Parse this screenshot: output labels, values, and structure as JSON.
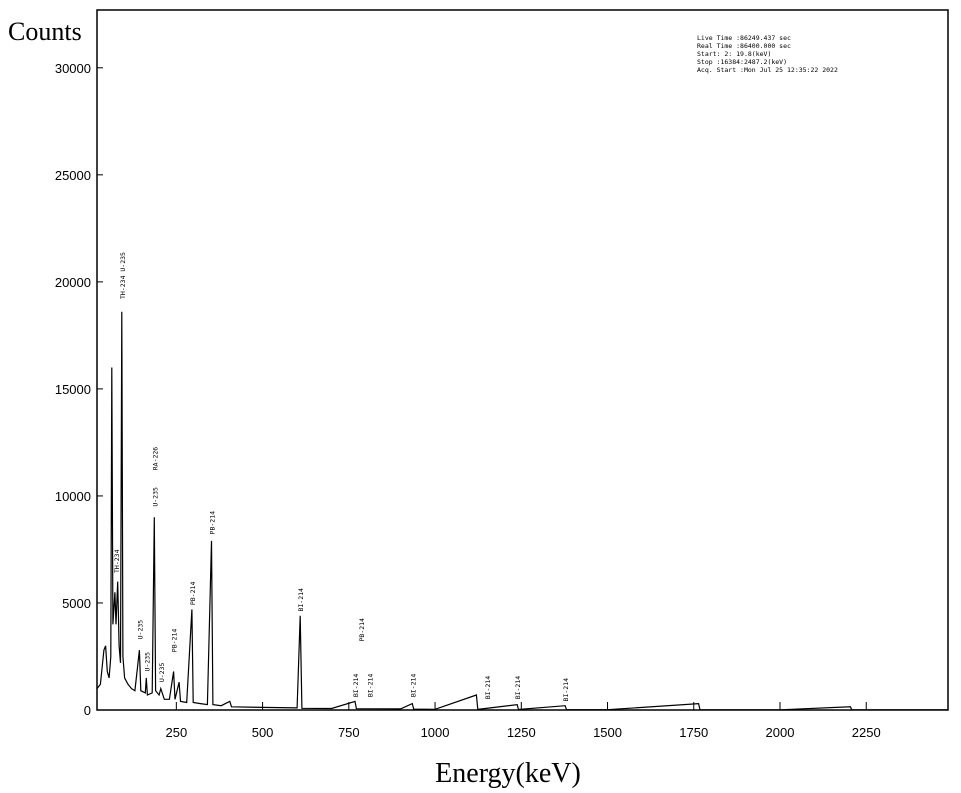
{
  "chart_data": {
    "type": "line",
    "x_label": "Energy(keV)",
    "y_label": "Counts",
    "info_lines": [
      "Live Time :86249.437 sec",
      "Real Time :86400.000 sec",
      "Start:    2:  19.8(keV)",
      "Stop :16384:2487.2(keV)",
      "Acq. Start :Mon Jul 25 12:35:22 2022"
    ],
    "xlim": [
      20,
      2487
    ],
    "ylim": [
      0,
      32700
    ],
    "xticks": [
      250,
      500,
      750,
      1000,
      1250,
      1500,
      1750,
      2000,
      2250
    ],
    "yticks": [
      0,
      5000,
      10000,
      15000,
      20000,
      25000,
      30000
    ],
    "color": "#000000",
    "x": [
      20,
      30,
      40,
      45,
      50,
      55,
      60,
      63,
      66,
      72,
      75,
      80,
      84,
      88,
      92,
      95,
      100,
      110,
      120,
      130,
      143,
      147,
      160,
      163,
      166,
      180,
      186,
      190,
      200,
      205,
      215,
      230,
      242,
      246,
      258,
      262,
      280,
      295,
      299,
      320,
      340,
      352,
      356,
      380,
      405,
      410,
      500,
      600,
      609,
      614,
      700,
      768,
      772,
      900,
      934,
      938,
      1000,
      1120,
      1124,
      1238,
      1242,
      1377,
      1381,
      1500,
      1764,
      1768,
      2000,
      2204,
      2208,
      2487
    ],
    "values": [
      1000,
      1200,
      2800,
      3000,
      1800,
      1500,
      2500,
      16000,
      4000,
      5500,
      4000,
      6000,
      3000,
      2200,
      18600,
      2500,
      1500,
      1200,
      1000,
      900,
      2800,
      900,
      800,
      1500,
      700,
      800,
      9000,
      900,
      700,
      1000,
      500,
      500,
      1800,
      500,
      1300,
      400,
      350,
      4700,
      350,
      300,
      250,
      7900,
      250,
      200,
      400,
      150,
      120,
      100,
      4400,
      80,
      70,
      400,
      60,
      50,
      300,
      40,
      35,
      700,
      30,
      250,
      25,
      200,
      20,
      15,
      300,
      10,
      8,
      150,
      5,
      3
    ],
    "peak_labels": [
      {
        "text": "TH-234 U-235",
        "x": 92,
        "y": 19200
      },
      {
        "text": "TH-234",
        "x": 75,
        "y": 6400
      },
      {
        "text": "U-235",
        "x": 143,
        "y": 3300
      },
      {
        "text": "U-235",
        "x": 163,
        "y": 1800
      },
      {
        "text": "U-235",
        "x": 186,
        "y": 9500
      },
      {
        "text": "RA-226",
        "x": 186,
        "y": 11200
      },
      {
        "text": "U-235",
        "x": 205,
        "y": 1300
      },
      {
        "text": "PB-214",
        "x": 242,
        "y": 2700
      },
      {
        "text": "PB-214",
        "x": 295,
        "y": 4900
      },
      {
        "text": "PB-214",
        "x": 352,
        "y": 8200
      },
      {
        "text": "BI-214",
        "x": 609,
        "y": 4600
      },
      {
        "text": "PB-214",
        "x": 785,
        "y": 3200
      },
      {
        "text": "BI-214",
        "x": 768,
        "y": 600
      },
      {
        "text": "BI-214",
        "x": 810,
        "y": 600
      },
      {
        "text": "BI-214",
        "x": 934,
        "y": 600
      },
      {
        "text": "BI-214",
        "x": 1150,
        "y": 500
      },
      {
        "text": "BI-214",
        "x": 1238,
        "y": 500
      },
      {
        "text": "BI-214",
        "x": 1377,
        "y": 400
      }
    ]
  }
}
